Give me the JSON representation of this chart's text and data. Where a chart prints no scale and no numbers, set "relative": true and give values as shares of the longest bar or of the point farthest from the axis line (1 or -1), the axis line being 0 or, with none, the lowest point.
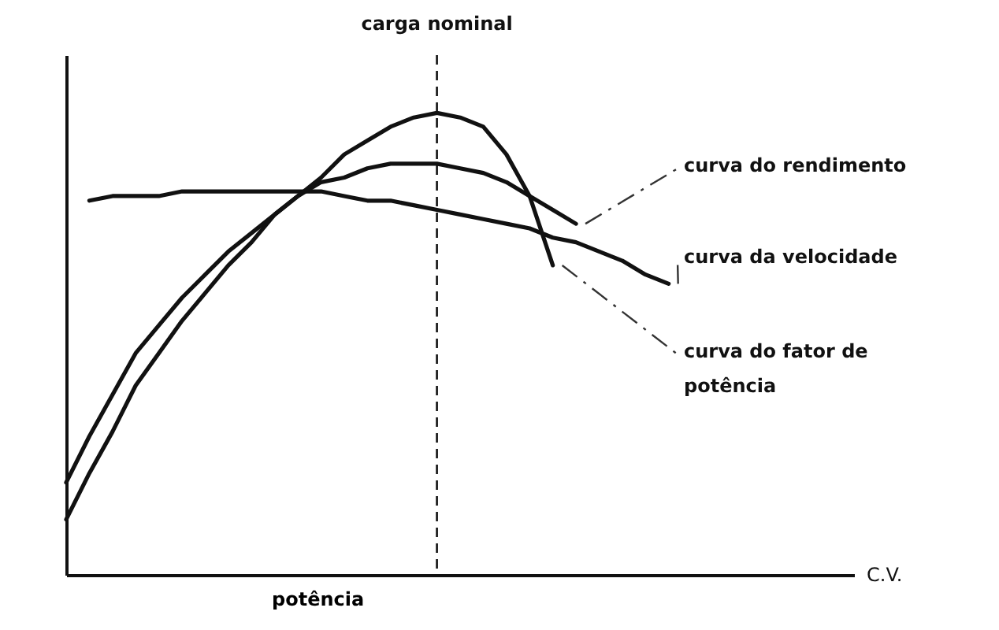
{
  "chart_data": {
    "type": "line",
    "relative": true,
    "xlabel": "potência",
    "legend": false,
    "grid": false,
    "marker": "none",
    "line_style": "solid",
    "categories": [
      null,
      null,
      null,
      null,
      null,
      null,
      null,
      null,
      null,
      null,
      null,
      null,
      null,
      null,
      null,
      null,
      null,
      null,
      null,
      null,
      null,
      null,
      null,
      null,
      null,
      null,
      null,
      null,
      null,
      null,
      null,
      null,
      null,
      null,
      null
    ],
    "series": [
      {
        "name": "curva do rendimento",
        "color": "#111111",
        "values": [
          0.2,
          0.3,
          0.39,
          0.48,
          0.54,
          0.6,
          0.65,
          0.7,
          0.74,
          0.78,
          0.82,
          0.85,
          0.86,
          0.88,
          0.89,
          0.89,
          0.89,
          0.88,
          0.87,
          0.85,
          0.82,
          0.79,
          0.76,
          null,
          null,
          null,
          null,
          null,
          null,
          null,
          null,
          null,
          null,
          null,
          null
        ]
      },
      {
        "name": "curva da velocidade",
        "color": "#111111",
        "values": [
          null,
          0.81,
          0.82,
          0.82,
          0.82,
          0.83,
          0.83,
          0.83,
          0.83,
          0.83,
          0.83,
          0.83,
          0.82,
          0.81,
          0.81,
          0.8,
          0.79,
          0.78,
          0.77,
          0.76,
          0.75,
          0.73,
          0.72,
          0.7,
          0.68,
          0.65,
          0.63,
          null,
          null,
          null,
          null,
          null,
          null,
          null,
          null
        ]
      },
      {
        "name": "curva do fator de\npotência",
        "color": "#111111",
        "values": [
          0.12,
          0.22,
          0.31,
          0.41,
          0.48,
          0.55,
          0.61,
          0.67,
          0.72,
          0.78,
          0.82,
          0.86,
          0.91,
          0.94,
          0.97,
          0.99,
          1,
          0.99,
          0.97,
          0.91,
          0.82,
          0.67,
          null,
          null,
          null,
          null,
          null,
          null,
          null,
          null,
          null,
          null,
          null,
          null,
          null
        ]
      }
    ],
    "annotations": [
      {
        "text": "carga nominal"
      },
      "C.V."
    ]
  }
}
